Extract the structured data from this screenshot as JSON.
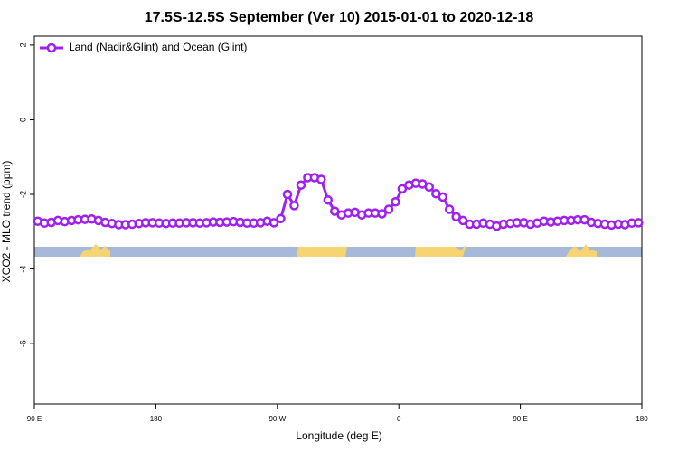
{
  "chart_data": {
    "type": "line",
    "title": "17.5S-12.5S September (Ver 10)   2015-01-01 to 2020-12-18",
    "x_label": "Longitude (deg E)",
    "y_label": "XCO2 - MLO trend (ppm)",
    "xlim": [
      90,
      540
    ],
    "ylim": [
      -7.62,
      2.24
    ],
    "xticks": [
      {
        "value": 90,
        "label": "90 E"
      },
      180,
      {
        "value": 270,
        "label": "90 W"
      },
      {
        "value": 360,
        "label": "0"
      },
      {
        "value": 450,
        "label": "90 E"
      },
      {
        "value": 540,
        "label": "180"
      }
    ],
    "yticks": [
      2,
      0,
      -2,
      -4,
      -6
    ],
    "legend": "top-left",
    "series": [
      {
        "name": "Land (Nadir&Glint) and Ocean (Glint)",
        "color": "#a020f0",
        "x": [
          92.5,
          97.5,
          102.5,
          107.5,
          112.5,
          117.5,
          122.5,
          127.5,
          132.5,
          137.5,
          142.5,
          147.5,
          152.5,
          157.5,
          162.5,
          167.5,
          172.5,
          177.5,
          182.5,
          187.5,
          192.5,
          197.5,
          202.5,
          207.5,
          212.5,
          217.5,
          222.5,
          227.5,
          232.5,
          237.5,
          242.5,
          247.5,
          252.5,
          257.5,
          262.5,
          267.5,
          272.5,
          277.5,
          282.5,
          287.5,
          292.5,
          297.5,
          302.5,
          307.5,
          312.5,
          317.5,
          322.5,
          327.5,
          332.5,
          337.5,
          342.5,
          347.5,
          352.5,
          357.5,
          362.5,
          367.5,
          372.5,
          377.5,
          382.5,
          387.5,
          392.5,
          397.5,
          402.5,
          407.5,
          412.5,
          417.5,
          422.5,
          427.5,
          432.5,
          437.5,
          442.5,
          447.5,
          452.5,
          457.5,
          462.5,
          467.5,
          472.5,
          477.5,
          482.5,
          487.5,
          492.5,
          497.5,
          502.5,
          507.5,
          512.5,
          517.5,
          522.5,
          527.5,
          532.5,
          537.5
        ],
        "values": [
          -2.72,
          -2.77,
          -2.75,
          -2.7,
          -2.73,
          -2.7,
          -2.68,
          -2.67,
          -2.66,
          -2.7,
          -2.75,
          -2.78,
          -2.81,
          -2.81,
          -2.8,
          -2.78,
          -2.76,
          -2.76,
          -2.77,
          -2.78,
          -2.77,
          -2.77,
          -2.76,
          -2.76,
          -2.77,
          -2.76,
          -2.74,
          -2.75,
          -2.74,
          -2.73,
          -2.75,
          -2.77,
          -2.77,
          -2.76,
          -2.72,
          -2.76,
          -2.65,
          -2.0,
          -2.3,
          -1.75,
          -1.55,
          -1.55,
          -1.6,
          -2.15,
          -2.45,
          -2.55,
          -2.5,
          -2.48,
          -2.55,
          -2.5,
          -2.5,
          -2.52,
          -2.4,
          -2.2,
          -1.85,
          -1.75,
          -1.7,
          -1.72,
          -1.8,
          -1.98,
          -2.07,
          -2.4,
          -2.6,
          -2.7,
          -2.8,
          -2.8,
          -2.77,
          -2.8,
          -2.85,
          -2.8,
          -2.78,
          -2.76,
          -2.76,
          -2.8,
          -2.77,
          -2.72,
          -2.74,
          -2.72,
          -2.7,
          -2.7,
          -2.68,
          -2.68,
          -2.75,
          -2.78,
          -2.8,
          -2.82,
          -2.8,
          -2.81,
          -2.77,
          -2.76
        ]
      }
    ]
  }
}
